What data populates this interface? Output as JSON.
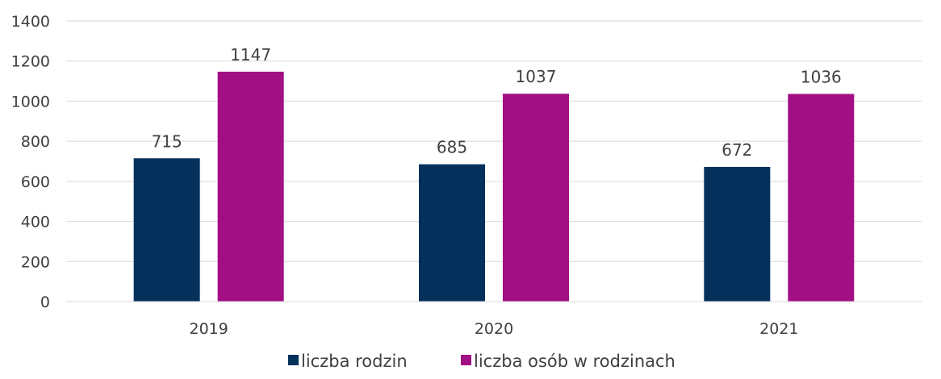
{
  "chart_data": {
    "type": "bar",
    "categories": [
      "2019",
      "2020",
      "2021"
    ],
    "series": [
      {
        "name": "liczba rodzin",
        "color": "#05305c",
        "values": [
          715,
          685,
          672
        ]
      },
      {
        "name": "liczba osób w rodzinach",
        "color": "#a20f84",
        "values": [
          1147,
          1037,
          1036
        ]
      }
    ],
    "yticks": [
      "0",
      "200",
      "400",
      "600",
      "800",
      "1000",
      "1200",
      "1400"
    ],
    "ylim": [
      0,
      1400
    ],
    "grid": true,
    "legend": "bottom-center",
    "data_labels": true
  }
}
